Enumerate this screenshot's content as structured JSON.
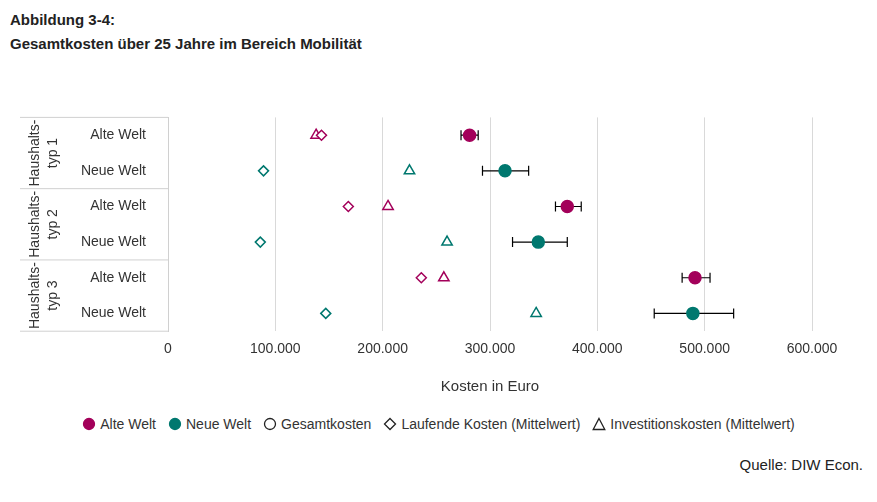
{
  "chart_data": {
    "type": "dot",
    "title": "Abbildung 3-4:",
    "subtitle": "Gesamtkosten über 25 Jahre im Bereich Mobilität",
    "x_label": "Kosten in Euro",
    "orientation": "horizontal",
    "groups": [
      {
        "lines": [
          "Haushalts-",
          "typ 1"
        ],
        "categories": [
          "Alte Welt",
          "Neue Welt"
        ]
      },
      {
        "lines": [
          "Haushalts-",
          "typ 2"
        ],
        "categories": [
          "Alte Welt",
          "Neue Welt"
        ]
      },
      {
        "lines": [
          "Haushalts-",
          "typ 3"
        ],
        "categories": [
          "Alte Welt",
          "Neue Welt"
        ]
      }
    ],
    "color_key": [
      {
        "name": "Alte Welt",
        "color": "#a3005a"
      },
      {
        "name": "Neue Welt",
        "color": "#00786f"
      }
    ],
    "series": [
      {
        "name": "Gesamtkosten",
        "marker": "circle",
        "values": [
          281000,
          314000,
          372000,
          345000,
          491000,
          489000
        ],
        "error_low": [
          273000,
          293000,
          361000,
          321000,
          479000,
          453000
        ],
        "error_high": [
          289000,
          336000,
          385000,
          372000,
          505000,
          527000
        ]
      },
      {
        "name": "Laufende Kosten (Mittelwert)",
        "marker": "diamond",
        "values": [
          143000,
          89000,
          168000,
          86000,
          236000,
          147000
        ]
      },
      {
        "name": "Investitionskosten (Mittelwert)",
        "marker": "triangle",
        "values": [
          138000,
          225000,
          205000,
          260000,
          257000,
          343000
        ]
      }
    ],
    "xlim": [
      0,
      600000
    ],
    "xticks": [
      0,
      {
        "value": 100000,
        "label": "100.000"
      },
      {
        "value": 200000,
        "label": "200.000"
      },
      {
        "value": 300000,
        "label": "300.000"
      },
      {
        "value": 400000,
        "label": "400.000"
      },
      {
        "value": 500000,
        "label": "500.000"
      },
      {
        "value": 600000,
        "label": "600.000"
      }
    ],
    "grid": true,
    "legend": "bottom",
    "source": "Quelle: DIW Econ."
  }
}
